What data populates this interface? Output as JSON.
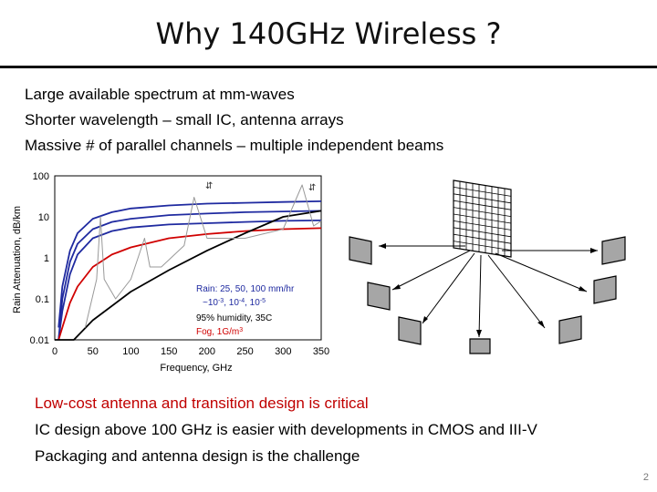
{
  "slide": {
    "title": "Why 140GHz Wireless ?",
    "page_number": "2"
  },
  "bullets_top": [
    "Large available spectrum at mm-waves",
    "Shorter wavelength – small IC, antenna arrays",
    "Massive # of parallel channels – multiple independent beams"
  ],
  "bullets_bottom": [
    "Low-cost antenna and transition design is critical",
    "IC design above 100 GHz is easier with developments in CMOS and III-V",
    "Packaging and antenna design is the challenge"
  ],
  "colors": {
    "highlight": "#c00000",
    "rain": "#1f2aa0",
    "fog": "#d00000",
    "humidity": "#000000",
    "atmosphere": "#999999"
  },
  "chart_data": {
    "type": "line",
    "xlabel": "Frequency, GHz",
    "ylabel": "Rain Attenuation, dB/km",
    "xlim": [
      0,
      350
    ],
    "ylim": [
      0.01,
      100
    ],
    "yscale": "log",
    "x_ticks": [
      "0",
      "50",
      "100",
      "150",
      "200",
      "250",
      "300",
      "350"
    ],
    "y_ticks": [
      "100",
      "10",
      "1",
      "0.1",
      "0.01"
    ],
    "legend": {
      "rain": "Rain: 25, 50, 100 mm/hr",
      "rain_prob_base": "~10",
      "rain_prob_exp1": "-3",
      "rain_prob_mid1": ", 10",
      "rain_prob_exp2": "-4",
      "rain_prob_mid2": ", 10",
      "rain_prob_exp3": "-5",
      "humidity": "95% humidity, 35C",
      "fog_base": "Fog, 1G/m",
      "fog_exp": "3"
    },
    "series": [
      {
        "x": [
          5,
          10,
          20,
          30,
          50,
          75,
          100,
          150,
          200,
          250,
          300,
          350
        ],
        "y": [
          0.02,
          0.2,
          1.5,
          4,
          9,
          13,
          16,
          19,
          21,
          22,
          23,
          24
        ],
        "color": "#1f2aa0"
      },
      {
        "x": [
          5,
          10,
          20,
          30,
          50,
          75,
          100,
          150,
          200,
          250,
          300,
          350
        ],
        "y": [
          0.01,
          0.1,
          0.8,
          2.2,
          5,
          7.5,
          9,
          11,
          12,
          13,
          13.5,
          14
        ],
        "color": "#1f2aa0"
      },
      {
        "x": [
          5,
          10,
          20,
          30,
          50,
          75,
          100,
          150,
          200,
          250,
          300,
          350
        ],
        "y": [
          0.01,
          0.05,
          0.4,
          1.2,
          3,
          4.5,
          5.5,
          6.5,
          7,
          7.5,
          8,
          8.2
        ],
        "color": "#1f2aa0"
      },
      {
        "x": [
          5,
          10,
          20,
          30,
          50,
          75,
          100,
          150,
          200,
          250,
          300,
          350
        ],
        "y": [
          0.01,
          0.02,
          0.08,
          0.2,
          0.6,
          1.2,
          1.8,
          3,
          3.8,
          4.5,
          5,
          5.3
        ],
        "color": "#d00000"
      },
      {
        "x": [
          0,
          25,
          50,
          100,
          150,
          200,
          250,
          300,
          350
        ],
        "y": [
          0.01,
          0.01,
          0.03,
          0.15,
          0.5,
          1.5,
          4,
          10,
          14
        ],
        "color": "#000000"
      },
      {
        "x": [
          40,
          55,
          60,
          65,
          80,
          100,
          118,
          125,
          140,
          170,
          183,
          200,
          250,
          300,
          325,
          340,
          350
        ],
        "y": [
          0.02,
          0.3,
          10,
          0.3,
          0.1,
          0.3,
          3,
          0.6,
          0.6,
          2,
          30,
          3,
          3,
          5,
          60,
          6,
          8
        ],
        "color": "#999999"
      }
    ]
  }
}
